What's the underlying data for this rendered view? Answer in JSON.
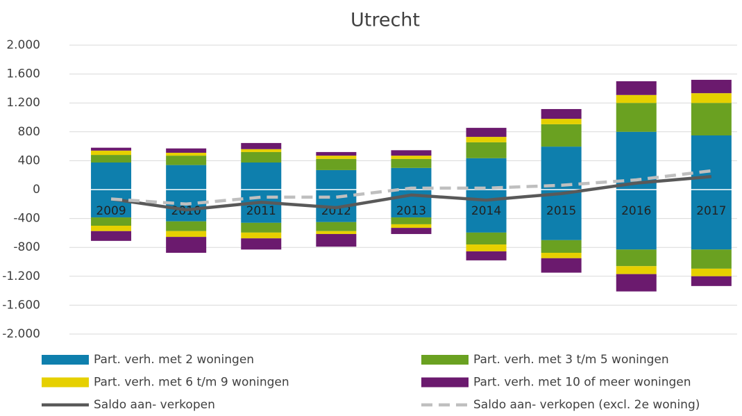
{
  "chart_data": {
    "type": "bar",
    "title": "Utrecht",
    "categories": [
      "2009",
      "2010",
      "2011",
      "2012",
      "2013",
      "2014",
      "2015",
      "2016",
      "2017"
    ],
    "ylim": [
      -2000,
      2000
    ],
    "yticks": [
      {
        "value": 2000,
        "label": "2.000"
      },
      {
        "value": 1600,
        "label": "1.600"
      },
      {
        "value": 1200,
        "label": "1.200"
      },
      800,
      400,
      0,
      -400,
      -800,
      {
        "value": -1200,
        "label": "-1.200"
      },
      {
        "value": -1600,
        "label": "-1.600"
      },
      {
        "value": -2000,
        "label": "-2.000"
      }
    ],
    "grid": true,
    "legend": "bottom",
    "stacked": true,
    "series": [
      {
        "name": "Part. verh. met 2 woningen",
        "color": "#0e7fad",
        "values": [
          375,
          340,
          375,
          270,
          300,
          435,
          595,
          800,
          750
        ]
      },
      {
        "name": "Part. verh. met 3 t/m 5 woningen",
        "color": "#6aa121",
        "values": [
          105,
          130,
          145,
          155,
          125,
          220,
          310,
          400,
          450
        ]
      },
      {
        "name": "Part. verh. met 6 t/m 9 woningen",
        "color": "#e6d000",
        "values": [
          60,
          40,
          40,
          45,
          45,
          75,
          75,
          110,
          135
        ]
      },
      {
        "name": "Part. verh. met 10 of meer woningen",
        "color": "#6b1a6e",
        "values": [
          40,
          60,
          85,
          50,
          75,
          125,
          135,
          190,
          185
        ]
      },
      {
        "name": "Part. verh. met 2 woningen",
        "color": "#0e7fad",
        "values": [
          -385,
          -440,
          -460,
          -450,
          -385,
          -595,
          -700,
          -830,
          -830
        ]
      },
      {
        "name": "Part. verh. met 3 t/m 5 woningen",
        "color": "#6aa121",
        "values": [
          -115,
          -135,
          -135,
          -125,
          -95,
          -165,
          -175,
          -230,
          -265
        ]
      },
      {
        "name": "Part. verh. met 6 t/m 9 woningen",
        "color": "#e6d000",
        "values": [
          -75,
          -80,
          -80,
          -40,
          -50,
          -95,
          -75,
          -110,
          -105
        ]
      },
      {
        "name": "Part. verh. met 10 of meer woningen",
        "color": "#6b1a6e",
        "values": [
          -135,
          -220,
          -155,
          -175,
          -85,
          -125,
          -200,
          -240,
          -135
        ]
      },
      {
        "name": "Saldo aan- verkopen",
        "type": "line",
        "color": "#595959",
        "values": [
          -130,
          -280,
          -175,
          -250,
          -75,
          -145,
          -55,
          90,
          180
        ]
      },
      {
        "name": "Saldo aan- verkopen (excl. 2e woning)",
        "type": "line",
        "dashed": true,
        "color": "#bfbfbf",
        "values": [
          -130,
          -200,
          -105,
          -105,
          20,
          20,
          60,
          135,
          260
        ]
      }
    ]
  }
}
